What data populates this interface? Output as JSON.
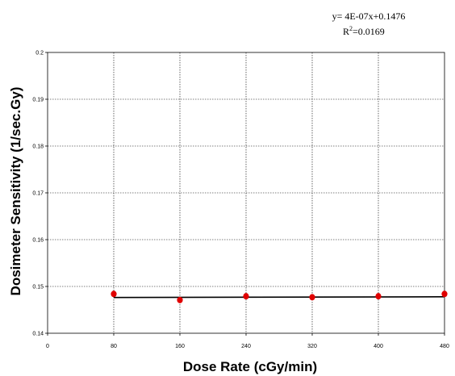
{
  "chart_data": {
    "type": "scatter",
    "title": "",
    "xlabel": "Dose Rate (cGy/min)",
    "ylabel": "Dosimeter Sensitivity (1/sec.Gy)",
    "xlim": [
      0,
      480
    ],
    "ylim": [
      0.14,
      0.2
    ],
    "xticks": [
      "0",
      "80",
      "160",
      "240",
      "320",
      "400",
      "480"
    ],
    "yticks": [
      "0.14",
      "0.15",
      "0.16",
      "0.17",
      "0.18",
      "0.19",
      "0.2"
    ],
    "grid": true,
    "series": [
      {
        "points": [
          {
            "x": 80,
            "y": 0.1484
          },
          {
            "x": 160,
            "y": 0.1471
          },
          {
            "x": 240,
            "y": 0.1479
          },
          {
            "x": 320,
            "y": 0.1477
          },
          {
            "x": 400,
            "y": 0.1479
          },
          {
            "x": 480,
            "y": 0.1484
          }
        ],
        "color": "#e00000"
      }
    ],
    "trendline": {
      "equation_prefix": "y= 4E-07x+0.1476",
      "r2_prefix": "R",
      "r2_sup": "2",
      "r2_value": "=0.0169",
      "slope": 4e-07,
      "intercept": 0.1476,
      "x_range": [
        80,
        480
      ],
      "color": "#000000"
    }
  }
}
